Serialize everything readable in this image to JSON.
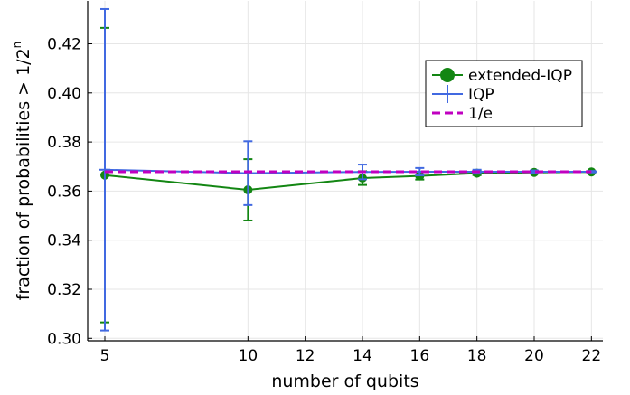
{
  "chart_data": {
    "type": "line",
    "xlabel": "number of qubits",
    "ylabel": "fraction of probabilities > 1/2",
    "ylabel_superscript": "n",
    "xlim": [
      4.4,
      22.4
    ],
    "ylim": [
      0.299,
      0.4375
    ],
    "xticks": [
      5,
      10,
      12,
      14,
      16,
      18,
      20,
      22
    ],
    "yticks": [
      0.3,
      0.32,
      0.34,
      0.36,
      0.38,
      0.4,
      0.42
    ],
    "grid": true,
    "legend_position": "top-right",
    "series": [
      {
        "name": "extended-IQP",
        "color": "#138613",
        "marker": "circle",
        "x": [
          5,
          10,
          14,
          16,
          18,
          20,
          22
        ],
        "y": [
          0.3665,
          0.3605,
          0.3653,
          0.3662,
          0.3673,
          0.3676,
          0.3678
        ],
        "err": [
          0.06,
          0.0125,
          0.0028,
          0.0015,
          0.0008,
          0.0005,
          0.0003
        ]
      },
      {
        "name": "IQP",
        "color": "#4169e1",
        "marker": "cross",
        "x": [
          5,
          10,
          14,
          16,
          18,
          20,
          22
        ],
        "y": [
          0.3687,
          0.3673,
          0.3678,
          0.3679,
          0.3679,
          0.3679,
          0.3679
        ],
        "err": [
          0.0655,
          0.013,
          0.003,
          0.0015,
          0.0008,
          0.0005,
          0.0003
        ]
      },
      {
        "name": "1/e",
        "color": "#c000c0",
        "style": "dashed",
        "x": [
          5,
          22
        ],
        "y": [
          0.3679,
          0.3679
        ]
      }
    ]
  }
}
